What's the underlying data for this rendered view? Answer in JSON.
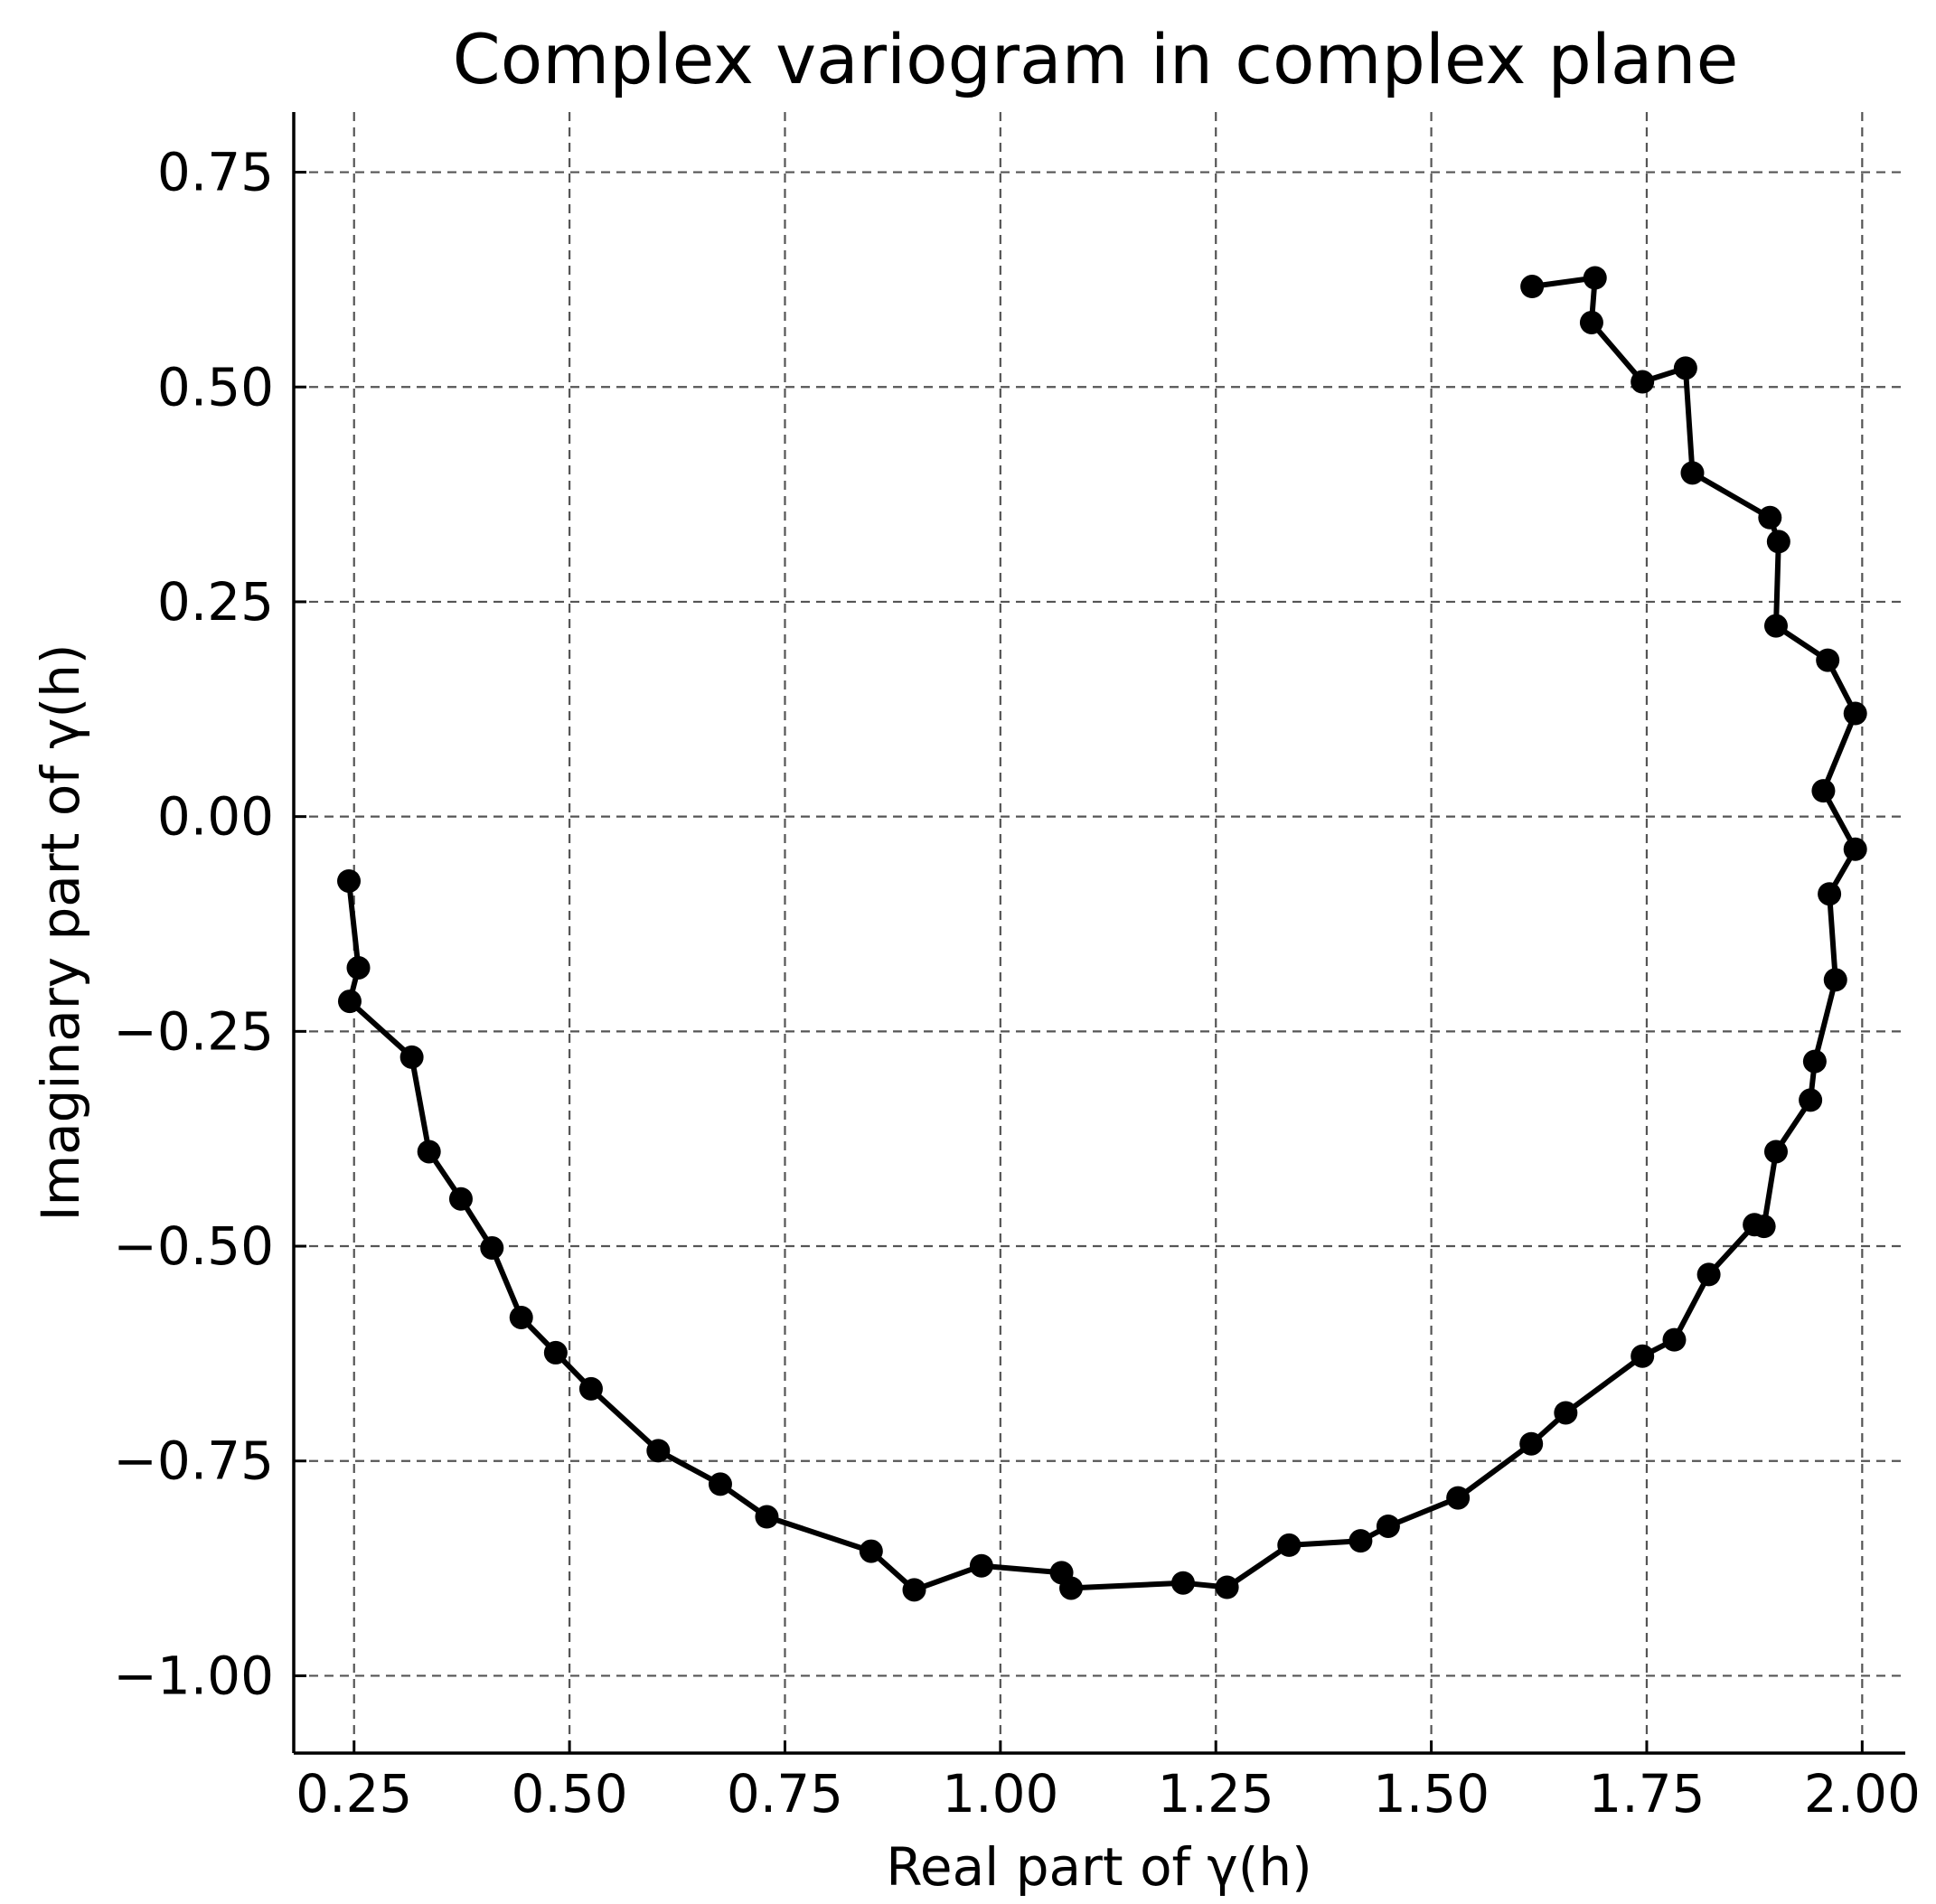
{
  "chart_data": {
    "type": "line",
    "title": "Complex variogram in complex plane",
    "xlabel": "Real part of γ(h)",
    "ylabel": "Imaginary part of γ(h)",
    "xlim": [
      0.18,
      2.05
    ],
    "ylim": [
      -1.09,
      0.82
    ],
    "xticks": [
      0.25,
      0.5,
      0.75,
      1.0,
      1.25,
      1.5,
      1.75,
      2.0
    ],
    "yticks": [
      0.75,
      0.5,
      0.25,
      0.0,
      -0.25,
      -0.5,
      -0.75,
      -1.0
    ],
    "xtick_labels": [
      "0.25",
      "0.50",
      "0.75",
      "1.00",
      "1.25",
      "1.50",
      "1.75",
      "2.00"
    ],
    "ytick_labels": [
      "0.75",
      "0.50",
      "0.25",
      "0.00",
      "−0.25",
      "−0.50",
      "−0.75",
      "−1.00"
    ],
    "grid": true,
    "line_color": "#000000",
    "marker": "circle",
    "series": [
      {
        "x": [
          0.244,
          0.255,
          0.245,
          0.317,
          0.337,
          0.374,
          0.41,
          0.444,
          0.484,
          0.525,
          0.603,
          0.675,
          0.729,
          0.85,
          0.9,
          0.978,
          1.071,
          1.082,
          1.212,
          1.263,
          1.335,
          1.418,
          1.45,
          1.531,
          1.616,
          1.656,
          1.745,
          1.782,
          1.822,
          1.875,
          1.886,
          1.9,
          1.94,
          1.945,
          1.969,
          1.962,
          1.992,
          1.955,
          1.992,
          1.96,
          1.9,
          1.903,
          1.893,
          1.803,
          1.795,
          1.745,
          1.686,
          1.69,
          1.617
        ],
        "y": [
          -0.075,
          -0.176,
          -0.215,
          -0.28,
          -0.39,
          -0.445,
          -0.502,
          -0.583,
          -0.624,
          -0.666,
          -0.738,
          -0.777,
          -0.815,
          -0.855,
          -0.9,
          -0.872,
          -0.88,
          -0.898,
          -0.892,
          -0.897,
          -0.848,
          -0.843,
          -0.826,
          -0.793,
          -0.73,
          -0.694,
          -0.628,
          -0.609,
          -0.533,
          -0.475,
          -0.477,
          -0.39,
          -0.33,
          -0.285,
          -0.19,
          -0.09,
          -0.038,
          0.03,
          0.12,
          0.182,
          0.222,
          0.32,
          0.348,
          0.4,
          0.522,
          0.506,
          0.575,
          0.627,
          0.617
        ]
      }
    ]
  }
}
